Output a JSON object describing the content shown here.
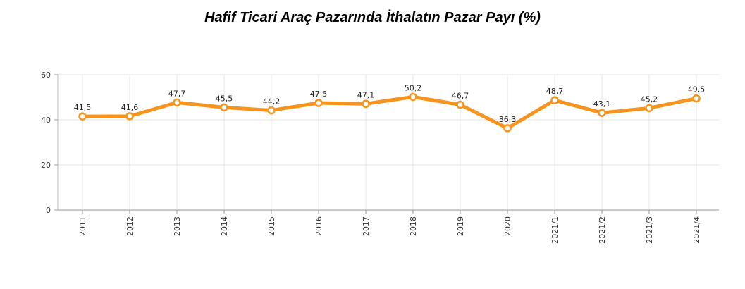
{
  "chart_data": {
    "type": "line",
    "title": "Hafif Ticari Araç Pazarında İthalatın Pazar Payı (%)",
    "categories": [
      "2011",
      "2012",
      "2013",
      "2014",
      "2015",
      "2016",
      "2017",
      "2018",
      "2019",
      "2020",
      "2021/1",
      "2021/2",
      "2021/3",
      "2021/4"
    ],
    "series": [
      {
        "values": [
          41.5,
          41.6,
          47.7,
          45.5,
          44.2,
          47.5,
          47.1,
          50.2,
          46.7,
          36.3,
          48.7,
          43.1,
          45.2,
          49.5
        ]
      }
    ],
    "data_labels": [
      "41,5",
      "41,6",
      "47,7",
      "45,5",
      "44,2",
      "47,5",
      "47,1",
      "50,2",
      "46,7",
      "36,3",
      "48,7",
      "43,1",
      "45,2",
      "49,5"
    ],
    "yticks": [
      "0",
      "20",
      "40",
      "60"
    ],
    "ylim": [
      0,
      60
    ],
    "grid": true,
    "line_color": "#F7941D",
    "marker_fill": "#ffffff",
    "xlabel": "",
    "ylabel": ""
  }
}
